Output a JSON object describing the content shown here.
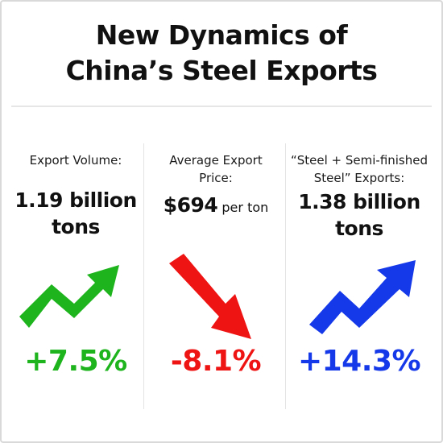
{
  "title": {
    "line1": "New Dynamics of",
    "line2": "China’s Steel Exports"
  },
  "colors": {
    "up_green": "#1db41d",
    "down_red": "#ef1414",
    "up_blue": "#1538e8"
  },
  "metrics": [
    {
      "label_line1": "Export Volume:",
      "label_line2": "",
      "value_line1_num": "1.19",
      "value_line1_rest": " billion",
      "value_line2": "tons",
      "change": "+7.5%",
      "trend": "up",
      "icon": "trend-up-arrow-icon",
      "color": "#1db41d"
    },
    {
      "label_line1": "Average Export",
      "label_line2": "Price:",
      "value_line1_num": "$694",
      "value_line1_rest": " per ton",
      "value_line2": "",
      "change": "-8.1%",
      "trend": "down",
      "icon": "trend-down-arrow-icon",
      "color": "#ef1414"
    },
    {
      "label_line1": "“Steel + Semi-finished",
      "label_line2": "Steel” Exports:",
      "value_line1_num": "1.38",
      "value_line1_rest": " billion",
      "value_line2": "tons",
      "change": "+14.3%",
      "trend": "up",
      "icon": "trend-up-arrow-icon",
      "color": "#1538e8"
    }
  ]
}
